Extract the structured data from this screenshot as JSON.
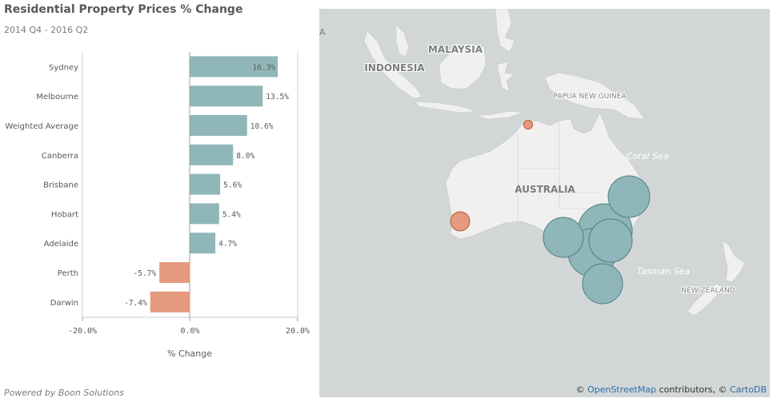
{
  "colors": {
    "positive": "#8fb6b8",
    "negative": "#e59a7d",
    "bubble_stroke": "#4e7e84",
    "perth_stroke": "#b55a38",
    "land": "#f0f0ef",
    "sea": "#d3d6d7"
  },
  "title": "Residential Property Prices % Change",
  "subtitle": "2014 Q4 - 2016 Q2",
  "footer": "Powered by Boon Solutions",
  "chart_data": {
    "type": "bar",
    "orientation": "horizontal",
    "categories": [
      "Sydney",
      "Melbourne",
      "Weighted Average",
      "Canberra",
      "Brisbane",
      "Hobart",
      "Adelaide",
      "Perth",
      "Darwin"
    ],
    "values": [
      16.3,
      13.5,
      10.6,
      8.0,
      5.6,
      5.4,
      4.7,
      -5.7,
      -7.4
    ],
    "value_labels": [
      "16.3%",
      "13.5%",
      "10.6%",
      "8.0%",
      "5.6%",
      "5.4%",
      "4.7%",
      "-5.7%",
      "-7.4%"
    ],
    "xlabel": "% Change",
    "xlim": [
      -20,
      20
    ],
    "xticks": [
      -20,
      0,
      20
    ],
    "xtick_labels": [
      "-20.0%",
      "0.0%",
      "20.0%"
    ],
    "grid": false
  },
  "map": {
    "labels": {
      "malaysia": "MALAYSIA",
      "indonesia": "INDONESIA",
      "papua": "PAPUA NEW GUINEA",
      "coral_sea": "Coral Sea",
      "australia": "AUSTRALIA",
      "tasman_sea": "Tasman  Sea",
      "new_zealand": "NEW ZEALAND",
      "edge": "A"
    },
    "attribution": {
      "symbol": "©",
      "osm": "OpenStreetMap",
      "contributors": "contributors,",
      "symbol2": "©",
      "carto": "CartoDB"
    }
  }
}
